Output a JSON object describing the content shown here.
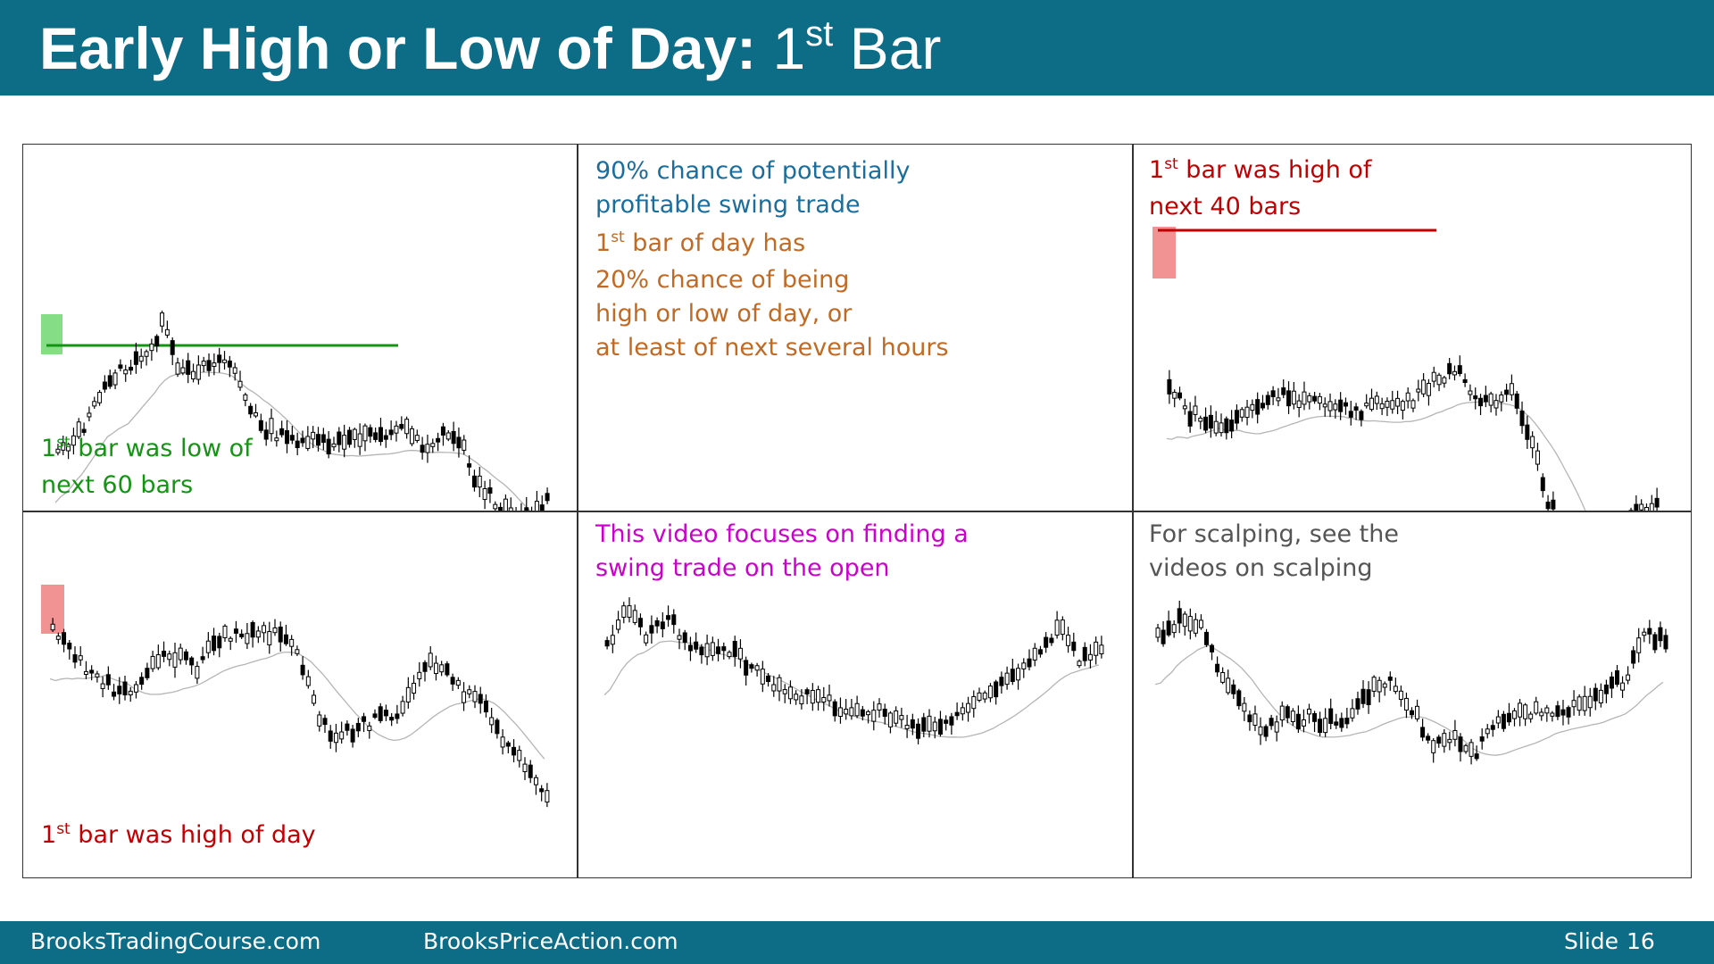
{
  "header": {
    "title_bold": "Early High or Low of Day:",
    "title_num": "1",
    "title_sup": "st",
    "title_rest": "Bar",
    "bg_color": "#0d6d86"
  },
  "panels": {
    "p1": {
      "label_line1_num": "1",
      "label_line1_sup": "st",
      "label_line1_rest": " bar was low of",
      "label_line2": "next 60 bars",
      "color": "#139413"
    },
    "p2": {
      "blue_line1": "90% chance of potentially",
      "blue_line2": "profitable swing trade",
      "orange_line1_num": "1",
      "orange_line1_sup": "st",
      "orange_line1_rest": " bar of day has",
      "orange_line2": "20% chance of being",
      "orange_line3": "high or low of day, or",
      "orange_line4": "at least of next several hours",
      "blue_color": "#1a6e9e",
      "orange_color": "#c06a24"
    },
    "p3": {
      "label_line1_num": "1",
      "label_line1_sup": "st",
      "label_line1_rest": " bar was high of",
      "label_line2": "next 40 bars",
      "color": "#c00000"
    },
    "p4": {
      "label_num": "1",
      "label_sup": "st",
      "label_rest": " bar was high of day",
      "color": "#c00000"
    },
    "p5": {
      "line1": "This video focuses on finding a",
      "line2": "swing trade on the open",
      "color": "#cc00cc"
    },
    "p6": {
      "line1": "For scalping, see the",
      "line2": "videos on scalping",
      "color": "#555555"
    }
  },
  "footer": {
    "left": "BrooksTradingCourse.com",
    "middle": "BrooksPriceAction.com",
    "slide_label": "Slide",
    "slide_number": "16"
  },
  "chart_data": [
    {
      "type": "candlestick",
      "panel": "p1",
      "bars": 95,
      "path_y": [
        340,
        330,
        300,
        260,
        250,
        240,
        200,
        260,
        250,
        240,
        245,
        300,
        320,
        330,
        330,
        335,
        335,
        330,
        320,
        325,
        315,
        340,
        325,
        330,
        380,
        400,
        410,
        420,
        400
      ],
      "highlight_bar": "first",
      "highlight_color": "#70d870",
      "level_line": "first-bar low",
      "level_color": "#139413"
    },
    {
      "type": "candlestick",
      "panel": "p3",
      "bars": 95,
      "path_y": [
        270,
        300,
        310,
        320,
        300,
        295,
        280,
        290,
        280,
        290,
        300,
        295,
        290,
        290,
        280,
        260,
        255,
        280,
        290,
        280,
        330,
        400,
        440,
        470,
        480,
        430,
        410,
        400
      ],
      "highlight_bar": "first",
      "highlight_color": "#f08080",
      "level_line": "first-bar high",
      "level_color": "#c00000"
    },
    {
      "type": "candlestick",
      "panel": "p4",
      "bars": 90,
      "path_y": [
        130,
        160,
        185,
        200,
        205,
        165,
        160,
        175,
        140,
        140,
        135,
        140,
        160,
        240,
        250,
        240,
        230,
        220,
        170,
        175,
        205,
        220,
        260,
        290,
        320
      ],
      "highlight_bar": "first",
      "highlight_color": "#f08080"
    },
    {
      "type": "candlestick",
      "panel": "p5",
      "bars": 90,
      "path_y": [
        150,
        110,
        140,
        120,
        150,
        160,
        155,
        175,
        190,
        200,
        210,
        215,
        225,
        225,
        230,
        240,
        240,
        230,
        210,
        190,
        180,
        160,
        130,
        170,
        150
      ]
    },
    {
      "type": "candlestick",
      "panel": "p6",
      "bars": 95,
      "path_y": [
        140,
        120,
        130,
        180,
        220,
        250,
        230,
        230,
        235,
        240,
        200,
        190,
        220,
        260,
        250,
        270,
        240,
        230,
        220,
        225,
        215,
        200,
        190,
        140,
        140
      ]
    }
  ]
}
